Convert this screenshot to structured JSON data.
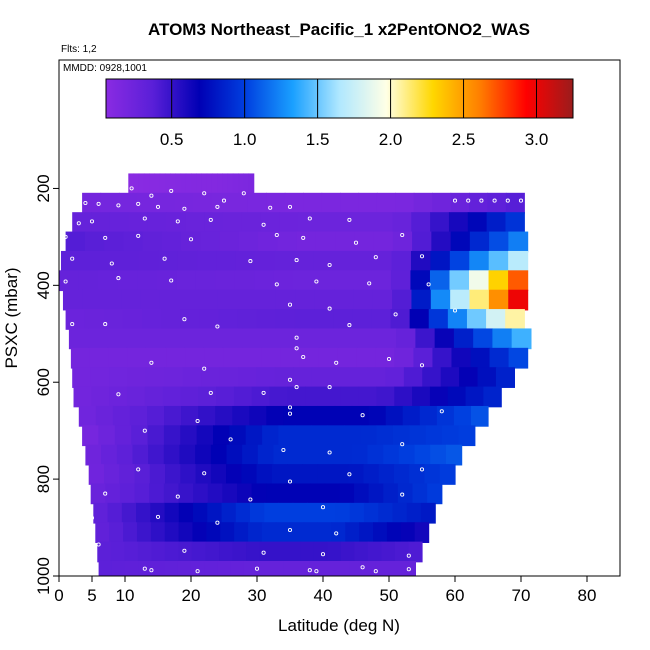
{
  "chart_data": {
    "type": "heatmap",
    "title": "ATOM3 Northeast_Pacific_1 x2PentONO2_WAS",
    "flights_note": "Flts: 1,2",
    "date_note": "MMDD: 0928,1001",
    "xlabel": "Latitude (deg N)",
    "ylabel": "PSXC (mbar)",
    "xlim": [
      0,
      85
    ],
    "ylim": [
      1000,
      200
    ],
    "x_ticks": [
      0,
      5,
      10,
      20,
      30,
      40,
      50,
      60,
      70,
      80
    ],
    "y_ticks": [
      200,
      400,
      600,
      800,
      1000
    ],
    "colorbar": {
      "range": [
        0.05,
        3.25
      ],
      "ticks": [
        0.5,
        1.0,
        1.5,
        2.0,
        2.5,
        3.0
      ],
      "tick_labels": [
        "0.5",
        "1.0",
        "1.5",
        "2.0",
        "2.5",
        "3.0"
      ],
      "colors": [
        "#8a2be2",
        "#5a1fd8",
        "#0000b4",
        "#0040e0",
        "#1aa0ff",
        "#b0e8ff",
        "#ffffe6",
        "#ffd700",
        "#ff7f00",
        "#ff0000",
        "#9b1c1c"
      ]
    },
    "rows": [
      {
        "p": 190,
        "x0": 10.5,
        "x1": 29.5,
        "v0": 0.05,
        "v1": 0.1,
        "v2": 0.15
      },
      {
        "p": 230,
        "x0": 3.5,
        "x1": 70.5,
        "v0": 0.2,
        "v1": 0.15,
        "v2": 0.4
      },
      {
        "p": 270,
        "x0": 2.0,
        "x1": 70.5,
        "v0": 0.3,
        "v1": 0.25,
        "v2": 1.0
      },
      {
        "p": 310,
        "x0": 1.0,
        "x1": 71.0,
        "v0": 0.4,
        "v1": 0.2,
        "v2": 1.3
      },
      {
        "p": 350,
        "x0": 0.3,
        "x1": 71.0,
        "v0": 0.35,
        "v1": 0.3,
        "v2": 1.8
      },
      {
        "p": 390,
        "x0": 0.0,
        "x1": 71.0,
        "v0": 0.3,
        "v1": 0.25,
        "v2": 2.9
      },
      {
        "p": 430,
        "x0": 0.6,
        "x1": 71.0,
        "v0": 0.3,
        "v1": 0.3,
        "v2": 3.2
      },
      {
        "p": 470,
        "x0": 1.0,
        "x1": 70.5,
        "v0": 0.25,
        "v1": 0.35,
        "v2": 2.2
      },
      {
        "p": 510,
        "x0": 1.5,
        "x1": 71.5,
        "v0": 0.25,
        "v1": 0.25,
        "v2": 1.5
      },
      {
        "p": 550,
        "x0": 1.8,
        "x1": 71.0,
        "v0": 0.2,
        "v1": 0.2,
        "v2": 1.1
      },
      {
        "p": 590,
        "x0": 2.0,
        "x1": 69.0,
        "v0": 0.2,
        "v1": 0.3,
        "v2": 0.9
      },
      {
        "p": 630,
        "x0": 2.2,
        "x1": 67.0,
        "v0": 0.2,
        "v1": 0.45,
        "v2": 0.9
      },
      {
        "p": 670,
        "x0": 3.0,
        "x1": 65.0,
        "v0": 0.2,
        "v1": 0.7,
        "v2": 1.1
      },
      {
        "p": 710,
        "x0": 3.5,
        "x1": 63.0,
        "v0": 0.15,
        "v1": 0.9,
        "v2": 1.0
      },
      {
        "p": 750,
        "x0": 4.0,
        "x1": 61.0,
        "v0": 0.2,
        "v1": 0.9,
        "v2": 1.1
      },
      {
        "p": 790,
        "x0": 4.5,
        "x1": 60.0,
        "v0": 0.2,
        "v1": 0.8,
        "v2": 1.0
      },
      {
        "p": 830,
        "x0": 4.8,
        "x1": 58.0,
        "v0": 0.25,
        "v1": 0.7,
        "v2": 1.0
      },
      {
        "p": 870,
        "x0": 5.2,
        "x1": 57.0,
        "v0": 0.3,
        "v1": 1.0,
        "v2": 0.8
      },
      {
        "p": 910,
        "x0": 5.5,
        "x1": 56.0,
        "v0": 0.3,
        "v1": 0.9,
        "v2": 0.6
      },
      {
        "p": 950,
        "x0": 5.8,
        "x1": 55.0,
        "v0": 0.35,
        "v1": 0.5,
        "v2": 0.4
      },
      {
        "p": 990,
        "x0": 6.0,
        "x1": 54.0,
        "v0": 0.35,
        "v1": 0.3,
        "v2": 0.3
      }
    ],
    "sample_points": [
      [
        11,
        200
      ],
      [
        14,
        215
      ],
      [
        17,
        205
      ],
      [
        22,
        210
      ],
      [
        25,
        225
      ],
      [
        28,
        210
      ],
      [
        4,
        230
      ],
      [
        6,
        232
      ],
      [
        9,
        235
      ],
      [
        12,
        232
      ],
      [
        15,
        238
      ],
      [
        19,
        242
      ],
      [
        24,
        238
      ],
      [
        32,
        240
      ],
      [
        35,
        238
      ],
      [
        60,
        225
      ],
      [
        62,
        225
      ],
      [
        64,
        225
      ],
      [
        66,
        225
      ],
      [
        68,
        225
      ],
      [
        70,
        225
      ],
      [
        3,
        272
      ],
      [
        5,
        268
      ],
      [
        13,
        262
      ],
      [
        18,
        268
      ],
      [
        23,
        265
      ],
      [
        31,
        275
      ],
      [
        38,
        262
      ],
      [
        44,
        265
      ],
      [
        1,
        300
      ],
      [
        7,
        302
      ],
      [
        12,
        298
      ],
      [
        20,
        305
      ],
      [
        33,
        296
      ],
      [
        37,
        302
      ],
      [
        45,
        312
      ],
      [
        52,
        296
      ],
      [
        2,
        345
      ],
      [
        8,
        355
      ],
      [
        16,
        345
      ],
      [
        29,
        350
      ],
      [
        36,
        348
      ],
      [
        41,
        358
      ],
      [
        48,
        342
      ],
      [
        55,
        340
      ],
      [
        1,
        392
      ],
      [
        9,
        385
      ],
      [
        17,
        390
      ],
      [
        33,
        398
      ],
      [
        39,
        392
      ],
      [
        47,
        396
      ],
      [
        56,
        398
      ],
      [
        35,
        440
      ],
      [
        41,
        448
      ],
      [
        51,
        460
      ],
      [
        60,
        452
      ],
      [
        2,
        480
      ],
      [
        7,
        480
      ],
      [
        19,
        470
      ],
      [
        24,
        485
      ],
      [
        36,
        508
      ],
      [
        36,
        530
      ],
      [
        44,
        482
      ],
      [
        14,
        560
      ],
      [
        22,
        572
      ],
      [
        37,
        548
      ],
      [
        42,
        560
      ],
      [
        50,
        552
      ],
      [
        55,
        565
      ],
      [
        35,
        595
      ],
      [
        36,
        610
      ],
      [
        31,
        622
      ],
      [
        23,
        622
      ],
      [
        9,
        625
      ],
      [
        41,
        610
      ],
      [
        35,
        652
      ],
      [
        35,
        665
      ],
      [
        46,
        668
      ],
      [
        58,
        660
      ],
      [
        21,
        680
      ],
      [
        13,
        700
      ],
      [
        26,
        718
      ],
      [
        34,
        740
      ],
      [
        41,
        745
      ],
      [
        52,
        728
      ],
      [
        12,
        780
      ],
      [
        22,
        788
      ],
      [
        35,
        805
      ],
      [
        44,
        790
      ],
      [
        55,
        780
      ],
      [
        7,
        830
      ],
      [
        18,
        836
      ],
      [
        29,
        842
      ],
      [
        40,
        858
      ],
      [
        52,
        832
      ],
      [
        5,
        880
      ],
      [
        15,
        878
      ],
      [
        24,
        890
      ],
      [
        35,
        905
      ],
      [
        42,
        912
      ],
      [
        6,
        935
      ],
      [
        19,
        948
      ],
      [
        31,
        952
      ],
      [
        40,
        955
      ],
      [
        53,
        958
      ],
      [
        13,
        985
      ],
      [
        14,
        988
      ],
      [
        21,
        990
      ],
      [
        30,
        985
      ],
      [
        38,
        988
      ],
      [
        39,
        990
      ],
      [
        46,
        982
      ],
      [
        48,
        990
      ],
      [
        53,
        986
      ]
    ]
  }
}
